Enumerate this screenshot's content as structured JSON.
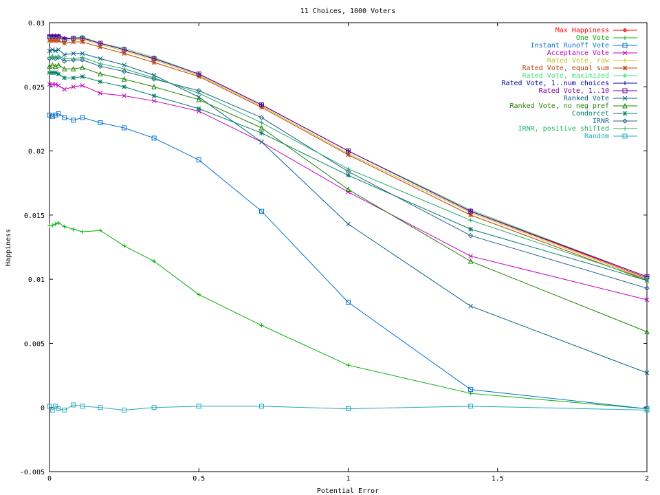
{
  "chart_data": {
    "type": "line",
    "title": "11 Choices, 1000 Voters",
    "xlabel": "Potential Error",
    "ylabel": "Happiness",
    "xlim": [
      0,
      2
    ],
    "ylim": [
      -0.005,
      0.03
    ],
    "grid": false,
    "legend_position": "top-right",
    "x": [
      0,
      0.01,
      0.02,
      0.03,
      0.05,
      0.08,
      0.11,
      0.17,
      0.25,
      0.35,
      0.5,
      0.71,
      1.0,
      1.41,
      2.0
    ],
    "xticks": [
      "0",
      "0.5",
      "1",
      "1.5",
      "2"
    ],
    "yticks": [
      "-0.005",
      "0",
      "0.005",
      "0.01",
      "0.015",
      "0.02",
      "0.025",
      "0.03"
    ],
    "series": [
      {
        "name": "Max Happiness",
        "color": "#ff0000",
        "marker": "plus-circle",
        "values": [
          0.0289,
          0.0289,
          0.0289,
          0.0289,
          0.0287,
          0.0288,
          0.0288,
          0.0284,
          0.0279,
          0.0272,
          0.026,
          0.0236,
          0.02,
          0.0153,
          0.0101
        ]
      },
      {
        "name": "One Vote",
        "color": "#00b000",
        "marker": "plus",
        "values": [
          0.0142,
          0.0142,
          0.0143,
          0.0144,
          0.0141,
          0.0139,
          0.0137,
          0.0138,
          0.0126,
          0.0114,
          0.0088,
          0.0064,
          0.0033,
          0.0011,
          -0.0001
        ]
      },
      {
        "name": "Instant Runoff Vote",
        "color": "#0070d0",
        "marker": "square",
        "values": [
          0.0228,
          0.0227,
          0.0228,
          0.0229,
          0.0226,
          0.0224,
          0.0226,
          0.0222,
          0.0218,
          0.021,
          0.0193,
          0.0153,
          0.0082,
          0.0014,
          -0.0001
        ]
      },
      {
        "name": "Acceptance Vote",
        "color": "#c000c0",
        "marker": "x",
        "values": [
          0.0252,
          0.0252,
          0.0252,
          0.0251,
          0.0248,
          0.025,
          0.0251,
          0.0245,
          0.0243,
          0.0239,
          0.0231,
          0.0207,
          0.0168,
          0.0118,
          0.0084
        ]
      },
      {
        "name": "Rated Vote, raw",
        "color": "#c0c020",
        "marker": "plus",
        "values": [
          0.0288,
          0.0288,
          0.0288,
          0.0288,
          0.0286,
          0.0287,
          0.0287,
          0.0283,
          0.0278,
          0.0271,
          0.0259,
          0.0235,
          0.0198,
          0.0152,
          0.01
        ]
      },
      {
        "name": "Rated Vote, equal sum",
        "color": "#c04000",
        "marker": "star",
        "values": [
          0.0286,
          0.0286,
          0.0286,
          0.0286,
          0.0284,
          0.0285,
          0.0285,
          0.0281,
          0.0276,
          0.0269,
          0.0258,
          0.0234,
          0.0197,
          0.015,
          0.0099
        ]
      },
      {
        "name": "Rated Vote, maximized",
        "color": "#40e080",
        "marker": "plus-circle",
        "values": [
          0.0289,
          0.0289,
          0.0289,
          0.0289,
          0.0287,
          0.0288,
          0.0289,
          0.0284,
          0.028,
          0.0273,
          0.026,
          0.0236,
          0.02,
          0.0154,
          0.0102
        ]
      },
      {
        "name": "Rated Vote, 1..num choices",
        "color": "#0000a0",
        "marker": "plus",
        "values": [
          0.029,
          0.029,
          0.029,
          0.029,
          0.0288,
          0.0288,
          0.0288,
          0.0284,
          0.0279,
          0.0272,
          0.026,
          0.0236,
          0.02,
          0.0153,
          0.0102
        ]
      },
      {
        "name": "Rated Vote, 1..10",
        "color": "#8000a0",
        "marker": "square",
        "values": [
          0.0289,
          0.0289,
          0.0289,
          0.0289,
          0.0287,
          0.0288,
          0.0288,
          0.0284,
          0.0279,
          0.0272,
          0.026,
          0.0236,
          0.02,
          0.0153,
          0.0102
        ]
      },
      {
        "name": "Ranked Vote",
        "color": "#006080",
        "marker": "x",
        "values": [
          0.0278,
          0.0279,
          0.0278,
          0.0279,
          0.0275,
          0.0276,
          0.0276,
          0.0272,
          0.0267,
          0.0259,
          0.0242,
          0.0207,
          0.0143,
          0.0079,
          0.0027
        ]
      },
      {
        "name": "Ranked Vote, no neg pref",
        "color": "#208000",
        "marker": "triangle",
        "values": [
          0.0266,
          0.0267,
          0.0266,
          0.0267,
          0.0264,
          0.0264,
          0.0265,
          0.026,
          0.0256,
          0.025,
          0.024,
          0.0218,
          0.017,
          0.0114,
          0.0059
        ]
      },
      {
        "name": "Condorcet",
        "color": "#008060",
        "marker": "star",
        "values": [
          0.0261,
          0.0261,
          0.0261,
          0.026,
          0.0257,
          0.0257,
          0.0258,
          0.0254,
          0.025,
          0.0243,
          0.0233,
          0.0214,
          0.0181,
          0.0139,
          0.0099
        ]
      },
      {
        "name": "IRNR",
        "color": "#206090",
        "marker": "diamond",
        "values": [
          0.0272,
          0.0273,
          0.0272,
          0.0273,
          0.027,
          0.0271,
          0.0271,
          0.0266,
          0.0262,
          0.0256,
          0.0247,
          0.0226,
          0.0184,
          0.0134,
          0.0093
        ]
      },
      {
        "name": "IRNR, positive shifted",
        "color": "#20b060",
        "marker": "plus",
        "values": [
          0.0273,
          0.0274,
          0.0273,
          0.0274,
          0.0272,
          0.0272,
          0.0273,
          0.0268,
          0.0264,
          0.0257,
          0.0245,
          0.0222,
          0.0186,
          0.0146,
          0.01
        ]
      },
      {
        "name": "Random",
        "color": "#20a8c0",
        "marker": "square",
        "values": [
          0.0001,
          -0.0002,
          0.0001,
          -0.0001,
          -0.0002,
          0.0002,
          0.0001,
          0.0,
          -0.0002,
          0.0,
          0.0001,
          0.0001,
          -0.0001,
          0.0001,
          -0.0002
        ]
      }
    ]
  }
}
